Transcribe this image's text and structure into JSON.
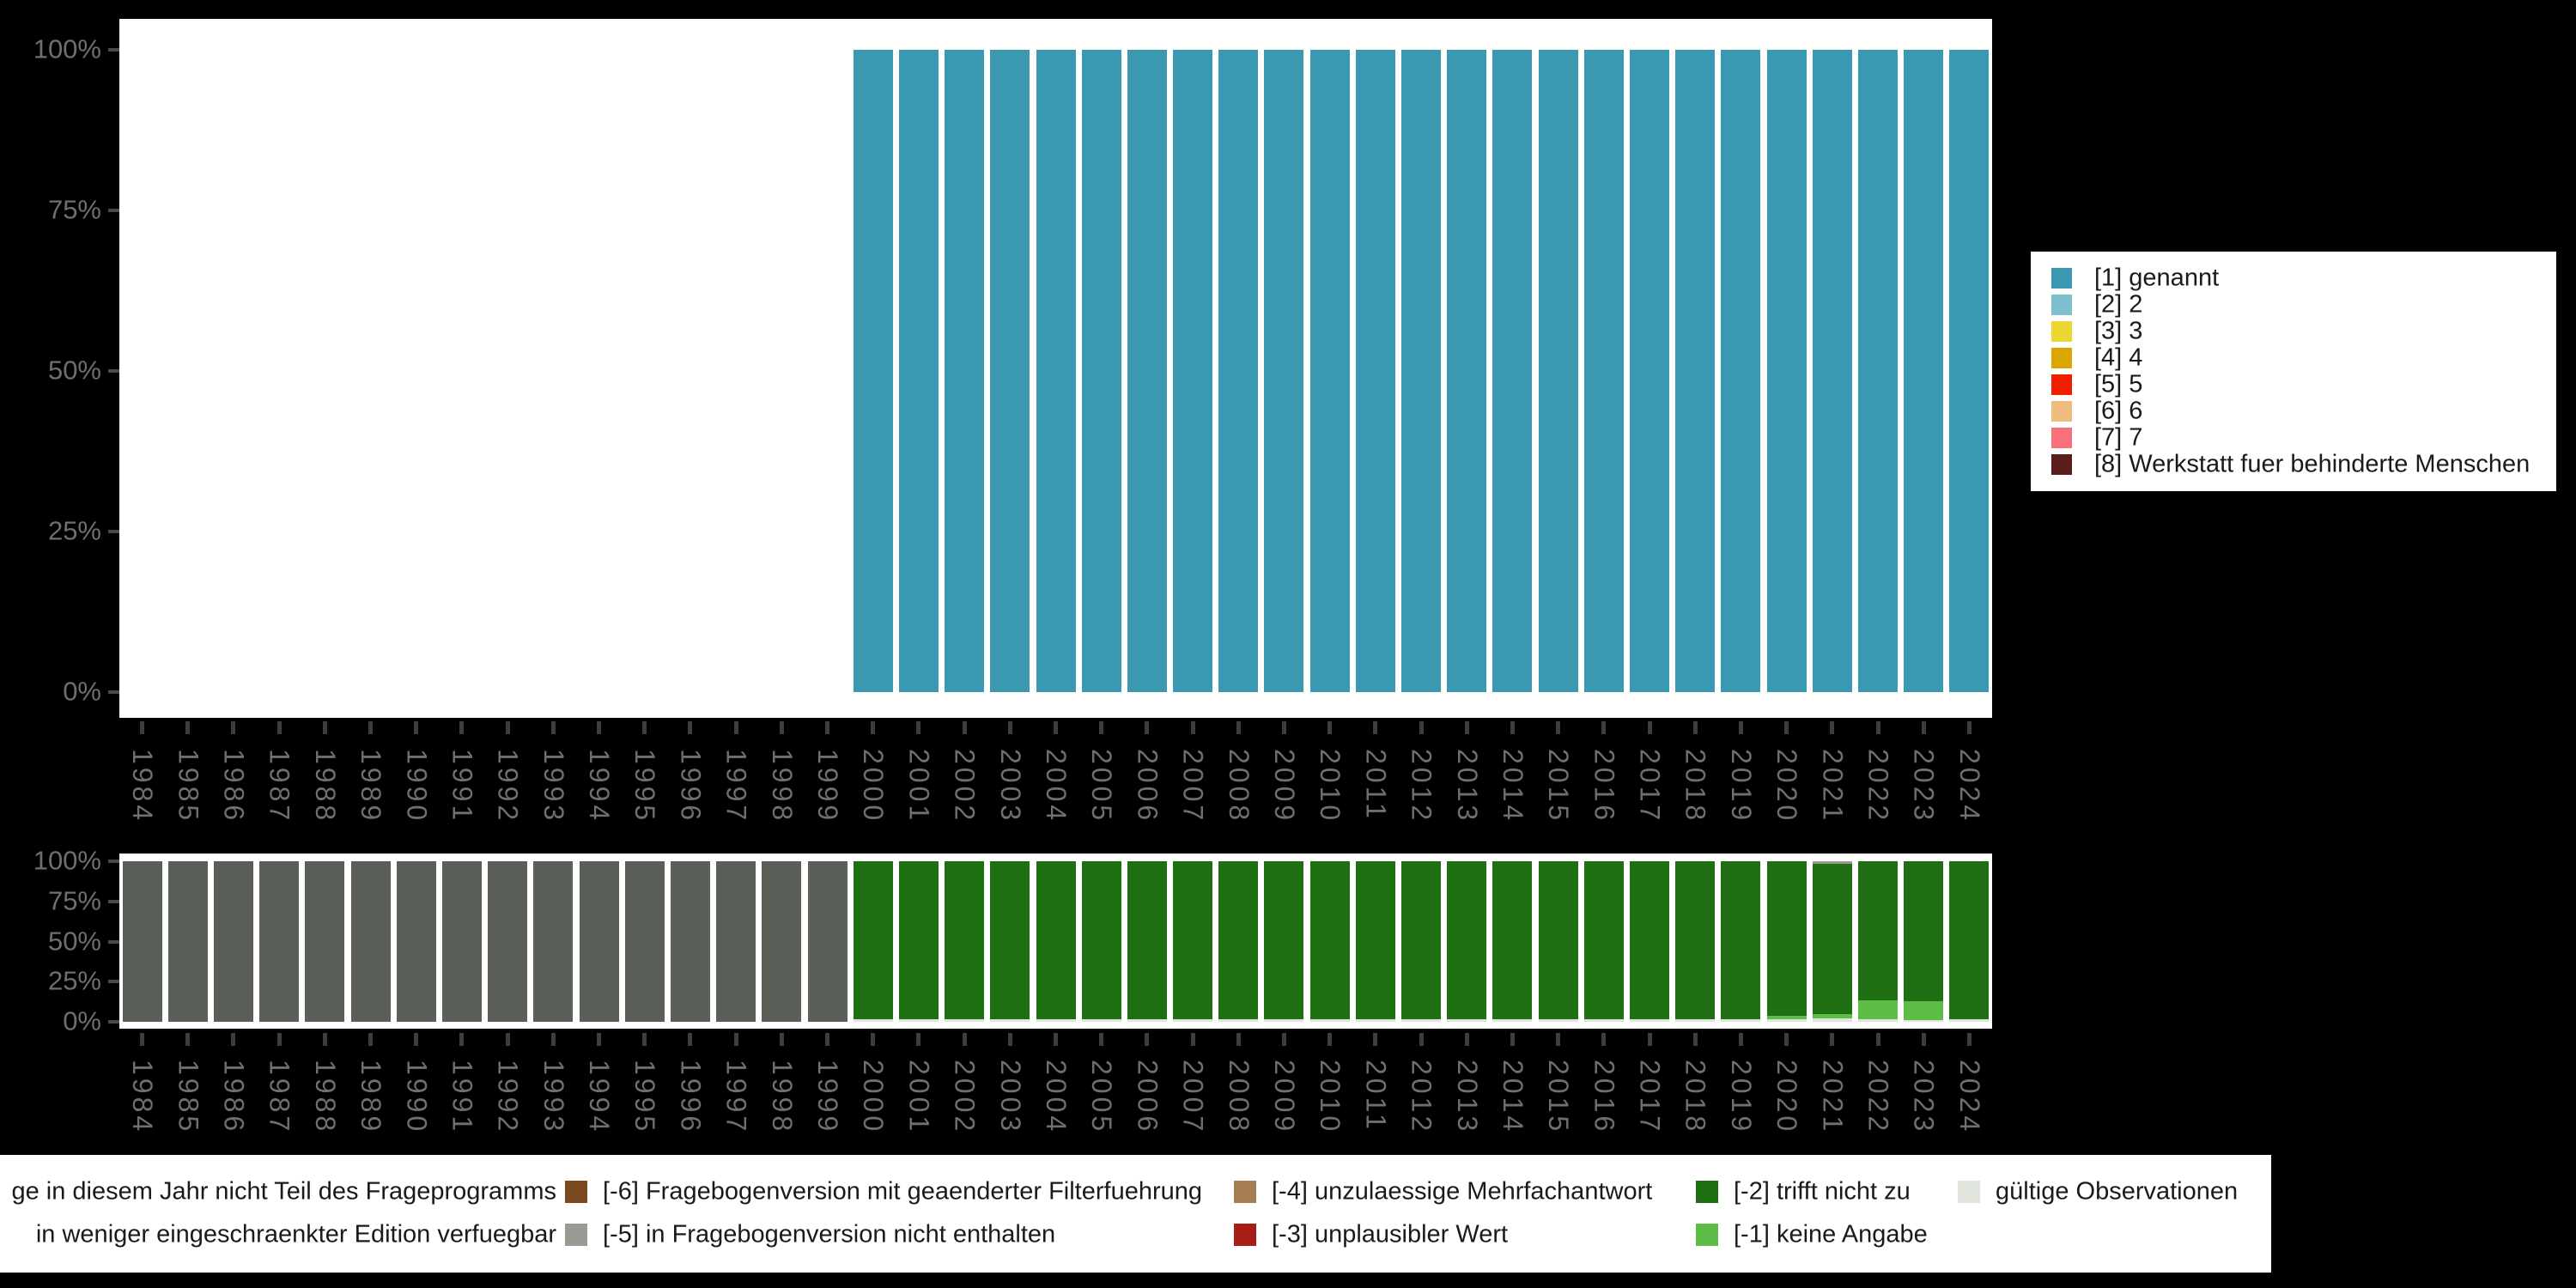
{
  "colors": {
    "background": "#000000",
    "panel": "#FFFFFF",
    "axis_text": "#6F6F6F",
    "axis_tick_y": "#4A4A4A",
    "axis_tick_x": "#3E3E3E",
    "legend_text": "#1A1A1A",
    "genannt_teal": "#3A98B0",
    "light_blue": "#7FC0CF",
    "yellow": "#EDD532",
    "gold": "#D8A800",
    "red": "#F01D00",
    "tan": "#F0BB80",
    "salmon": "#FA707A",
    "maroon": "#5A1E1C",
    "dark_gray_bar": "#5A6058",
    "medium_gray": "#9A9A92",
    "brown": "#7B4A21",
    "light_brown": "#A67C52",
    "brick_red": "#A81D16",
    "dark_green": "#1F7012",
    "light_green": "#5CBE46",
    "valid_light_gray": "#DFE4DC"
  },
  "y_axis_ticks": [
    "100%",
    "75%",
    "50%",
    "25%",
    "0%"
  ],
  "years": [
    "1984",
    "1985",
    "1986",
    "1987",
    "1988",
    "1989",
    "1990",
    "1991",
    "1992",
    "1993",
    "1994",
    "1995",
    "1996",
    "1997",
    "1998",
    "1999",
    "2000",
    "2001",
    "2002",
    "2003",
    "2004",
    "2005",
    "2006",
    "2007",
    "2008",
    "2009",
    "2010",
    "2011",
    "2012",
    "2013",
    "2014",
    "2015",
    "2016",
    "2017",
    "2018",
    "2019",
    "2020",
    "2021",
    "2022",
    "2023",
    "2024"
  ],
  "chart_data": [
    {
      "id": "valid-values-chart",
      "type": "bar",
      "stacked": true,
      "unit": "percent",
      "title": "",
      "xlabel": "",
      "ylabel": "",
      "ylim": [
        0,
        100
      ],
      "grid": false,
      "legend_position": "right",
      "categories": [
        "1984",
        "1985",
        "1986",
        "1987",
        "1988",
        "1989",
        "1990",
        "1991",
        "1992",
        "1993",
        "1994",
        "1995",
        "1996",
        "1997",
        "1998",
        "1999",
        "2000",
        "2001",
        "2002",
        "2003",
        "2004",
        "2005",
        "2006",
        "2007",
        "2008",
        "2009",
        "2010",
        "2011",
        "2012",
        "2013",
        "2014",
        "2015",
        "2016",
        "2017",
        "2018",
        "2019",
        "2020",
        "2021",
        "2022",
        "2023",
        "2024"
      ],
      "series": [
        {
          "name": "[1] genannt",
          "color": "#3A98B0",
          "values": [
            0,
            0,
            0,
            0,
            0,
            0,
            0,
            0,
            0,
            0,
            0,
            0,
            0,
            0,
            0,
            0,
            100,
            100,
            100,
            100,
            100,
            100,
            100,
            100,
            100,
            100,
            100,
            100,
            100,
            100,
            100,
            100,
            100,
            100,
            100,
            100,
            100,
            100,
            100,
            100,
            100
          ]
        }
      ]
    },
    {
      "id": "missing-values-chart",
      "type": "bar",
      "stacked": true,
      "unit": "percent",
      "title": "",
      "xlabel": "",
      "ylabel": "",
      "ylim": [
        0,
        100
      ],
      "grid": false,
      "legend_position": "bottom",
      "categories": [
        "1984",
        "1985",
        "1986",
        "1987",
        "1988",
        "1989",
        "1990",
        "1991",
        "1992",
        "1993",
        "1994",
        "1995",
        "1996",
        "1997",
        "1998",
        "1999",
        "2000",
        "2001",
        "2002",
        "2003",
        "2004",
        "2005",
        "2006",
        "2007",
        "2008",
        "2009",
        "2010",
        "2011",
        "2012",
        "2013",
        "2014",
        "2015",
        "2016",
        "2017",
        "2018",
        "2019",
        "2020",
        "2021",
        "2022",
        "2023",
        "2024"
      ],
      "series": [
        {
          "name": "gültige Observationen",
          "color": "#DFE4DC",
          "values": [
            0,
            0,
            0,
            0,
            0,
            0,
            0,
            0,
            0,
            0,
            0,
            0,
            0,
            0,
            0,
            0,
            1.5,
            1.5,
            1.5,
            1.5,
            1.5,
            1.5,
            1.5,
            1.5,
            1.5,
            1.5,
            1.5,
            1.5,
            1.5,
            1.5,
            1.5,
            1.5,
            1.5,
            1.5,
            1.5,
            1.5,
            1.5,
            2,
            1.5,
            1,
            1.5
          ]
        },
        {
          "name": "[-1] keine Angabe",
          "color": "#5CBE46",
          "values": [
            0,
            0,
            0,
            0,
            0,
            0,
            0,
            0,
            0,
            0,
            0,
            0,
            0,
            0,
            0,
            0,
            0,
            0,
            0,
            0,
            0,
            0,
            0,
            0,
            0,
            0,
            0,
            0,
            0,
            0,
            0,
            0,
            0,
            0,
            0,
            0,
            2,
            3,
            12,
            12,
            0
          ]
        },
        {
          "name": "[-2] trifft nicht zu",
          "color": "#1F7012",
          "values": [
            0,
            0,
            0,
            0,
            0,
            0,
            0,
            0,
            0,
            0,
            0,
            0,
            0,
            0,
            0,
            0,
            98.5,
            98.5,
            98.5,
            98.5,
            98.5,
            98.5,
            98.5,
            98.5,
            98.5,
            98.5,
            98.5,
            98.5,
            98.5,
            98.5,
            98.5,
            98.5,
            98.5,
            98.5,
            98.5,
            98.5,
            96.5,
            93.5,
            86.5,
            87,
            98.5
          ]
        },
        {
          "name": "in weniger eingeschraenkter Edition verfuegbar",
          "color": "#9A9A92",
          "values": [
            0,
            0,
            0,
            0,
            0,
            0,
            0,
            0,
            0,
            0,
            0,
            0,
            0,
            0,
            0,
            0,
            0,
            0,
            0,
            0,
            0,
            0,
            0,
            0,
            0,
            0,
            0,
            0,
            0,
            0,
            0,
            0,
            0,
            0,
            0,
            0,
            0,
            1.5,
            0,
            0,
            0
          ]
        },
        {
          "name": "ge in diesem Jahr nicht Teil des Frageprogramms",
          "color": "#5A6058",
          "values": [
            100,
            100,
            100,
            100,
            100,
            100,
            100,
            100,
            100,
            100,
            100,
            100,
            100,
            100,
            100,
            100,
            0,
            0,
            0,
            0,
            0,
            0,
            0,
            0,
            0,
            0,
            0,
            0,
            0,
            0,
            0,
            0,
            0,
            0,
            0,
            0,
            0,
            0,
            0,
            0,
            0
          ]
        }
      ]
    }
  ],
  "right_legend": {
    "items": [
      {
        "label": "[1] genannt",
        "color": "#3A98B0"
      },
      {
        "label": "[2] 2",
        "color": "#7FC0CF"
      },
      {
        "label": "[3] 3",
        "color": "#EDD532"
      },
      {
        "label": "[4] 4",
        "color": "#D8A800"
      },
      {
        "label": "[5] 5",
        "color": "#F01D00"
      },
      {
        "label": "[6] 6",
        "color": "#F0BB80"
      },
      {
        "label": "[7] 7",
        "color": "#FA707A"
      },
      {
        "label": "[8] Werkstatt fuer behinderte Menschen",
        "color": "#5A1E1C"
      }
    ]
  },
  "bottom_legend": {
    "rows": [
      [
        {
          "label": "ge in diesem Jahr nicht Teil des Frageprogramms",
          "color": null
        },
        {
          "label": "[-6] Fragebogenversion mit geaenderter Filterfuehrung",
          "color": "#7B4A21"
        },
        {
          "label": "[-4] unzulaessige Mehrfachantwort",
          "color": "#A67C52"
        },
        {
          "label": "[-2] trifft nicht zu",
          "color": "#1F7012"
        },
        {
          "label": "gültige Observationen",
          "color": "#DFE4DC"
        }
      ],
      [
        {
          "label": "in weniger eingeschraenkter Edition verfuegbar",
          "color": null
        },
        {
          "label": "[-5] in Fragebogenversion nicht enthalten",
          "color": "#9A9A92"
        },
        {
          "label": "[-3] unplausibler Wert",
          "color": "#A81D16"
        },
        {
          "label": "[-1] keine Angabe",
          "color": "#5CBE46"
        }
      ]
    ]
  }
}
